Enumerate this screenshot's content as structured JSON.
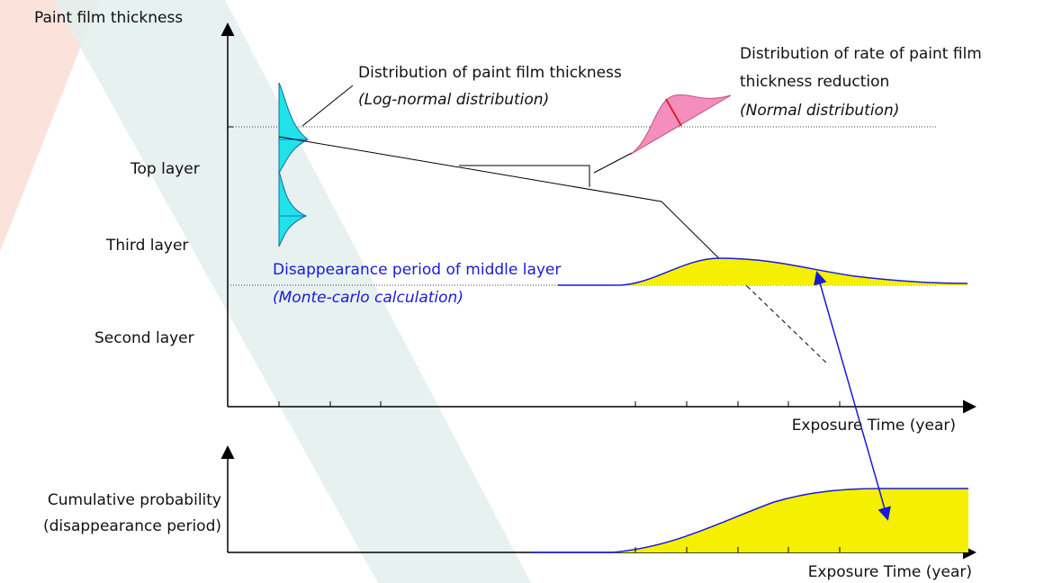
{
  "axis_labels": {
    "y_top": "Paint film thickness",
    "x_top": "Exposure Time (year)",
    "y_bottom_line1": "Cumulative probability",
    "y_bottom_line2": "(disappearance period)",
    "x_bottom": "Exposure Time (year)"
  },
  "layers": [
    "Top layer",
    "Third layer",
    "Second layer"
  ],
  "annotations": {
    "thickness_dist": {
      "line1": "Distribution of paint film thickness",
      "line2": "(Log-normal distribution)"
    },
    "rate_dist": {
      "line1": "Distribution of rate of paint film",
      "line2": "thickness reduction",
      "line3": "(Normal distribution)"
    },
    "disappearance": {
      "line1": "Disappearance period of middle layer",
      "line2": "(Monte-carlo calculation)"
    }
  }
}
